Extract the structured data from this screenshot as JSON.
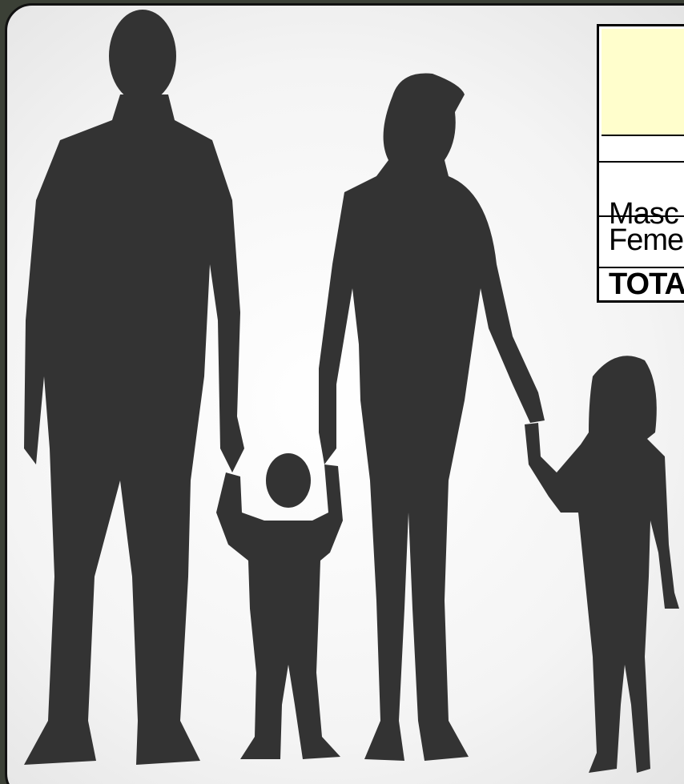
{
  "table": {
    "rows": [
      [
        "Masc"
      ],
      [
        "Feme"
      ],
      [
        "TOTA"
      ]
    ]
  }
}
